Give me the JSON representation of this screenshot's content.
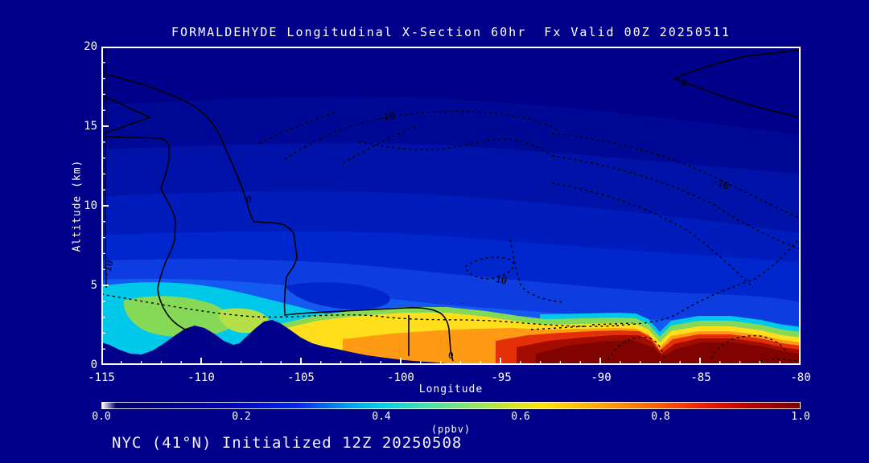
{
  "title": "FORMALDEHYDE Longitudinal X-Section 60hr  Fx Valid 00Z 20250511",
  "footer": "NYC (41°N) Initialized 12Z 20250508",
  "axes": {
    "x": {
      "label": "Longitude",
      "ticks": [
        "-115",
        "-110",
        "-105",
        "-100",
        "-95",
        "-90",
        "-85",
        "-80"
      ]
    },
    "y": {
      "label": "Altitude (km)",
      "ticks": [
        "20",
        "15",
        "10",
        "5",
        "0"
      ]
    }
  },
  "colorbar": {
    "label": "(ppbv)",
    "ticks": [
      "0.0",
      "0.2",
      "0.4",
      "0.6",
      "0.8",
      "1.0"
    ]
  },
  "contour_labels": [
    {
      "text": "-10"
    },
    {
      "text": "0"
    },
    {
      "text": "-10"
    },
    {
      "text": "-10"
    },
    {
      "text": "-10"
    },
    {
      "text": "0"
    },
    {
      "text": "0"
    }
  ],
  "colors": {
    "background": "#00008B",
    "axis_frame": "#FFFFFF",
    "tick_text": "#FFFFFF",
    "contour_lines": "#000000"
  },
  "chart_data": {
    "type": "heatmap",
    "subtype": "filled-contour longitudinal cross-section with overlaid line contours",
    "title": "FORMALDEHYDE Longitudinal X-Section 60hr  Fx Valid 00Z 20250511",
    "annotation": "NYC (41°N) Initialized 12Z 20250508",
    "xlabel": "Longitude",
    "ylabel": "Altitude (km)",
    "units": "(ppbv)",
    "x_range": [
      -115,
      -80
    ],
    "x_ticks": [
      -115,
      -110,
      -105,
      -100,
      -95,
      -90,
      -85,
      -80
    ],
    "y_range": [
      0,
      20
    ],
    "y_ticks": [
      0,
      5,
      10,
      15,
      20
    ],
    "colorbar_range": [
      0.0,
      1.0
    ],
    "colorbar_ticks": [
      0.0,
      0.2,
      0.4,
      0.6,
      0.8,
      1.0
    ],
    "colormap": [
      {
        "pos": 0.0,
        "hex": "#FFFFFF"
      },
      {
        "pos": 0.02,
        "hex": "#00006E"
      },
      {
        "pos": 0.08,
        "hex": "#000085"
      },
      {
        "pos": 0.18,
        "hex": "#0000B8"
      },
      {
        "pos": 0.28,
        "hex": "#0028F0"
      },
      {
        "pos": 0.35,
        "hex": "#009CF5"
      },
      {
        "pos": 0.4,
        "hex": "#00CFE8"
      },
      {
        "pos": 0.46,
        "hex": "#3FE0B8"
      },
      {
        "pos": 0.52,
        "hex": "#7FE573"
      },
      {
        "pos": 0.58,
        "hex": "#C8E62E"
      },
      {
        "pos": 0.63,
        "hex": "#FFE500"
      },
      {
        "pos": 0.72,
        "hex": "#FFA000"
      },
      {
        "pos": 0.8,
        "hex": "#FF5A00"
      },
      {
        "pos": 0.87,
        "hex": "#E81800"
      },
      {
        "pos": 0.93,
        "hex": "#B40000"
      },
      {
        "pos": 1.0,
        "hex": "#7D0000"
      }
    ],
    "longitudes": [
      -115,
      -112.5,
      -110,
      -107.5,
      -105,
      -102.5,
      -100,
      -97.5,
      -95,
      -92.5,
      -90,
      -87.5,
      -85,
      -82.5,
      -80
    ],
    "altitudes_km": [
      0,
      1,
      2,
      3,
      4,
      5,
      6,
      8,
      10,
      12,
      14,
      16,
      18,
      20
    ],
    "hcho_ppbv_grid_by_altitude": [
      [
        0.38,
        0.45,
        0.5,
        0.45,
        0.62,
        0.68,
        0.66,
        0.72,
        0.9,
        1.0,
        1.0,
        0.95,
        1.0,
        0.95,
        0.88
      ],
      [
        0.38,
        0.44,
        0.48,
        0.5,
        0.6,
        0.65,
        0.64,
        0.68,
        0.8,
        0.95,
        0.98,
        0.8,
        0.95,
        0.9,
        0.8
      ],
      [
        0.38,
        0.42,
        0.46,
        0.5,
        0.58,
        0.6,
        0.6,
        0.55,
        0.5,
        0.55,
        0.6,
        0.45,
        0.55,
        0.5,
        0.45
      ],
      [
        0.37,
        0.42,
        0.45,
        0.42,
        0.45,
        0.5,
        0.45,
        0.35,
        0.3,
        0.28,
        0.3,
        0.25,
        0.3,
        0.28,
        0.3
      ],
      [
        0.36,
        0.4,
        0.38,
        0.35,
        0.3,
        0.33,
        0.35,
        0.28,
        0.25,
        0.22,
        0.22,
        0.2,
        0.22,
        0.25,
        0.28
      ],
      [
        0.35,
        0.33,
        0.3,
        0.28,
        0.25,
        0.28,
        0.3,
        0.25,
        0.22,
        0.2,
        0.2,
        0.18,
        0.2,
        0.22,
        0.25
      ],
      [
        0.25,
        0.24,
        0.22,
        0.2,
        0.2,
        0.22,
        0.22,
        0.2,
        0.18,
        0.17,
        0.17,
        0.16,
        0.17,
        0.18,
        0.2
      ],
      [
        0.17,
        0.16,
        0.15,
        0.15,
        0.14,
        0.15,
        0.15,
        0.14,
        0.14,
        0.13,
        0.13,
        0.13,
        0.13,
        0.14,
        0.15
      ],
      [
        0.12,
        0.12,
        0.11,
        0.11,
        0.1,
        0.1,
        0.1,
        0.1,
        0.1,
        0.1,
        0.1,
        0.1,
        0.1,
        0.1,
        0.11
      ],
      [
        0.08,
        0.08,
        0.08,
        0.08,
        0.07,
        0.07,
        0.07,
        0.07,
        0.07,
        0.07,
        0.07,
        0.07,
        0.08,
        0.08,
        0.08
      ],
      [
        0.06,
        0.06,
        0.06,
        0.05,
        0.05,
        0.05,
        0.05,
        0.05,
        0.05,
        0.05,
        0.05,
        0.06,
        0.06,
        0.06,
        0.06
      ],
      [
        0.04,
        0.04,
        0.04,
        0.04,
        0.04,
        0.04,
        0.04,
        0.04,
        0.04,
        0.04,
        0.04,
        0.04,
        0.04,
        0.04,
        0.04
      ],
      [
        0.03,
        0.03,
        0.03,
        0.03,
        0.03,
        0.03,
        0.03,
        0.03,
        0.03,
        0.03,
        0.03,
        0.03,
        0.03,
        0.03,
        0.03
      ],
      [
        0.03,
        0.03,
        0.03,
        0.03,
        0.03,
        0.03,
        0.03,
        0.03,
        0.03,
        0.03,
        0.03,
        0.03,
        0.03,
        0.03,
        0.03
      ]
    ],
    "terrain_surface_km": [
      1.4,
      2.3,
      2.6,
      2.1,
      2.6,
      1.8,
      1.1,
      0.5,
      0.05,
      0,
      0,
      0,
      0,
      0,
      0
    ],
    "overlay_contours": {
      "style_solid_labels": [
        "0"
      ],
      "style_dashed_labels": [
        "-10"
      ],
      "values_labeled": [
        -10,
        0
      ]
    },
    "legend_position": "bottom horizontal colorbar",
    "grid": "off"
  }
}
